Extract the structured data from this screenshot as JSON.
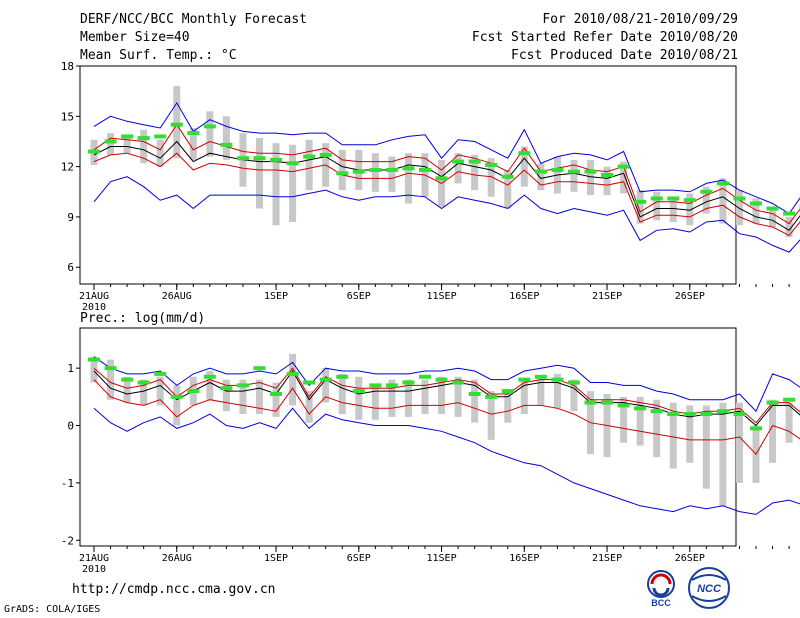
{
  "header": {
    "title": "DERF/NCC/BCC Monthly Forecast",
    "member_size": "Member Size=40",
    "variable_top": "Mean Surf. Temp.: °C",
    "period": "For 2010/08/21-2010/09/29",
    "fcst_started": "Fcst Started Refer Date 2010/08/20",
    "fcst_produced": "Fcst Produced Date 2010/08/21"
  },
  "footer": {
    "url": "http://cmdp.ncc.cma.gov.cn",
    "credit": "GrADS: COLA/IGES",
    "logo_left_text": "BCC",
    "logo_right_text": "NCC"
  },
  "colors": {
    "mean": "#000000",
    "spread": "#d00000",
    "extreme": "#0000dd",
    "box": "#c8c8c8",
    "climatology": "#33dd33"
  },
  "chart_data": [
    {
      "type": "line",
      "title": "Mean Surf. Temp.: °C",
      "x_tick_labels": [
        "21AUG",
        "26AUG",
        "1SEP",
        "6SEP",
        "11SEP",
        "16SEP",
        "21SEP",
        "26SEP"
      ],
      "x_tick_days": [
        0,
        5,
        11,
        16,
        21,
        26,
        31,
        36
      ],
      "x_year_label": "2010",
      "ylim": [
        5,
        18
      ],
      "y_ticks": [
        6,
        9,
        12,
        15,
        18
      ],
      "series": [
        {
          "name": "ensemble mean",
          "color": "#000000",
          "values": [
            12.7,
            13.2,
            13.2,
            13.0,
            12.5,
            13.5,
            12.3,
            12.8,
            12.6,
            12.4,
            12.3,
            12.3,
            12.2,
            12.4,
            12.6,
            12.0,
            11.8,
            11.8,
            11.8,
            12.1,
            12.0,
            11.4,
            12.2,
            12.0,
            11.8,
            11.3,
            12.5,
            11.3,
            11.5,
            11.6,
            11.4,
            11.3,
            11.6,
            9.0,
            9.5,
            9.5,
            9.4,
            9.9,
            10.2,
            9.5,
            9.0,
            8.8,
            8.2,
            9.5,
            8.9,
            8.6
          ]
        },
        {
          "name": "spread upper",
          "color": "#d00000",
          "values": [
            13.0,
            13.7,
            13.6,
            13.5,
            13.0,
            14.5,
            13.0,
            13.5,
            13.2,
            12.9,
            12.8,
            12.8,
            12.7,
            12.9,
            13.1,
            12.4,
            12.3,
            12.3,
            12.3,
            12.6,
            12.5,
            11.8,
            12.7,
            12.5,
            12.2,
            11.7,
            13.1,
            11.7,
            11.9,
            12.1,
            11.8,
            11.7,
            12.0,
            9.3,
            9.9,
            9.9,
            9.8,
            10.3,
            10.7,
            10.0,
            9.4,
            9.2,
            8.6,
            9.9,
            9.3,
            9.0
          ]
        },
        {
          "name": "spread lower",
          "color": "#d00000",
          "values": [
            12.3,
            12.7,
            12.8,
            12.5,
            12.0,
            12.8,
            11.8,
            12.2,
            12.1,
            11.9,
            11.8,
            11.8,
            11.7,
            11.9,
            12.1,
            11.5,
            11.3,
            11.3,
            11.3,
            11.6,
            11.5,
            11.0,
            11.7,
            11.5,
            11.4,
            10.9,
            11.8,
            10.9,
            11.1,
            11.1,
            11.0,
            10.9,
            11.1,
            8.7,
            9.1,
            9.1,
            9.0,
            9.5,
            9.7,
            9.0,
            8.6,
            8.4,
            7.9,
            9.1,
            8.5,
            8.2
          ]
        },
        {
          "name": "max",
          "color": "#0000dd",
          "values": [
            14.4,
            15.0,
            14.7,
            14.5,
            14.3,
            15.8,
            14.1,
            14.8,
            14.4,
            14.1,
            14.0,
            14.0,
            13.9,
            14.0,
            14.0,
            13.3,
            13.3,
            13.3,
            13.6,
            13.8,
            13.9,
            12.5,
            13.6,
            13.5,
            13.0,
            12.5,
            14.2,
            12.2,
            12.6,
            12.8,
            12.7,
            12.4,
            12.9,
            10.5,
            10.6,
            10.6,
            10.5,
            11.0,
            11.2,
            10.6,
            10.2,
            9.8,
            9.2,
            10.6,
            10.2,
            10.0
          ]
        },
        {
          "name": "min",
          "color": "#0000dd",
          "values": [
            9.9,
            11.1,
            11.4,
            10.8,
            10.0,
            10.3,
            9.5,
            10.3,
            10.3,
            10.3,
            10.3,
            10.2,
            10.2,
            10.4,
            10.6,
            10.2,
            10.0,
            10.2,
            10.2,
            10.3,
            10.2,
            9.5,
            10.2,
            10.0,
            9.8,
            9.5,
            10.3,
            9.5,
            9.2,
            9.5,
            9.3,
            9.1,
            9.4,
            7.6,
            8.2,
            8.3,
            8.1,
            8.7,
            8.8,
            8.0,
            7.8,
            7.3,
            6.9,
            8.0,
            7.8,
            7.4
          ]
        }
      ],
      "boxes": [
        [
          12.1,
          13.6
        ],
        [
          12.7,
          14.0
        ],
        [
          12.8,
          13.8
        ],
        [
          12.2,
          14.2
        ],
        [
          12.0,
          13.6
        ],
        [
          12.5,
          16.8
        ],
        [
          12.4,
          14.3
        ],
        [
          12.6,
          15.3
        ],
        [
          12.4,
          15.0
        ],
        [
          10.8,
          14.0
        ],
        [
          9.5,
          13.7
        ],
        [
          8.5,
          13.4
        ],
        [
          8.7,
          13.3
        ],
        [
          10.6,
          13.6
        ],
        [
          10.8,
          13.4
        ],
        [
          10.6,
          13.0
        ],
        [
          10.6,
          13.0
        ],
        [
          10.5,
          12.8
        ],
        [
          10.5,
          12.6
        ],
        [
          9.8,
          12.8
        ],
        [
          10.2,
          12.8
        ],
        [
          9.6,
          12.4
        ],
        [
          11.0,
          12.8
        ],
        [
          10.6,
          12.7
        ],
        [
          10.2,
          12.5
        ],
        [
          9.5,
          11.8
        ],
        [
          10.8,
          13.2
        ],
        [
          10.6,
          12.2
        ],
        [
          10.4,
          12.6
        ],
        [
          10.5,
          12.4
        ],
        [
          10.3,
          12.4
        ],
        [
          10.3,
          12.0
        ],
        [
          10.4,
          12.3
        ],
        [
          8.6,
          10.6
        ],
        [
          8.8,
          10.5
        ],
        [
          8.7,
          10.2
        ],
        [
          8.5,
          10.4
        ],
        [
          9.2,
          10.8
        ],
        [
          8.6,
          11.3
        ],
        [
          8.5,
          10.6
        ],
        [
          8.6,
          10.1
        ],
        [
          8.4,
          9.6
        ],
        [
          7.8,
          9.0
        ],
        [
          8.3,
          10.2
        ],
        [
          8.0,
          10.1
        ],
        [
          7.6,
          9.7
        ]
      ],
      "climatology": [
        12.9,
        13.5,
        13.8,
        13.7,
        13.8,
        14.5,
        14.0,
        14.4,
        13.3,
        12.5,
        12.5,
        12.4,
        12.2,
        12.6,
        12.7,
        11.6,
        11.7,
        11.8,
        11.8,
        11.9,
        11.8,
        11.3,
        12.3,
        12.3,
        12.1,
        11.4,
        12.8,
        11.7,
        11.8,
        11.7,
        11.7,
        11.5,
        12.0,
        9.9,
        10.1,
        10.1,
        10.0,
        10.5,
        11.0,
        10.1,
        9.8,
        9.5,
        9.2,
        9.6,
        9.3,
        9.2
      ]
    },
    {
      "type": "line",
      "title": "Prec.: log(mm/d)",
      "x_tick_labels": [
        "21AUG",
        "26AUG",
        "1SEP",
        "6SEP",
        "11SEP",
        "16SEP",
        "21SEP",
        "26SEP"
      ],
      "x_tick_days": [
        0,
        5,
        11,
        16,
        21,
        26,
        31,
        36
      ],
      "x_year_label": "2010",
      "ylim": [
        -2.1,
        1.7
      ],
      "y_ticks": [
        -2,
        -1,
        0,
        1
      ],
      "series": [
        {
          "name": "ensemble mean",
          "color": "#000000",
          "values": [
            0.95,
            0.65,
            0.55,
            0.6,
            0.7,
            0.45,
            0.6,
            0.75,
            0.6,
            0.6,
            0.65,
            0.55,
            0.95,
            0.45,
            0.8,
            0.65,
            0.55,
            0.6,
            0.6,
            0.6,
            0.65,
            0.7,
            0.75,
            0.7,
            0.5,
            0.5,
            0.7,
            0.75,
            0.75,
            0.65,
            0.4,
            0.4,
            0.4,
            0.35,
            0.3,
            0.2,
            0.15,
            0.2,
            0.2,
            0.25,
            0.0,
            0.35,
            0.35,
            0.1,
            0.2,
            0.25
          ]
        },
        {
          "name": "spread upper",
          "color": "#d00000",
          "values": [
            1.0,
            0.75,
            0.65,
            0.7,
            0.8,
            0.5,
            0.7,
            0.8,
            0.7,
            0.7,
            0.75,
            0.65,
            1.0,
            0.5,
            0.85,
            0.7,
            0.65,
            0.65,
            0.65,
            0.7,
            0.7,
            0.75,
            0.8,
            0.75,
            0.55,
            0.55,
            0.75,
            0.8,
            0.8,
            0.7,
            0.45,
            0.45,
            0.45,
            0.4,
            0.35,
            0.25,
            0.2,
            0.25,
            0.25,
            0.3,
            0.05,
            0.4,
            0.4,
            0.15,
            0.25,
            0.3
          ]
        },
        {
          "name": "spread lower",
          "color": "#d00000",
          "values": [
            0.8,
            0.5,
            0.4,
            0.35,
            0.45,
            0.15,
            0.35,
            0.45,
            0.4,
            0.35,
            0.3,
            0.25,
            0.65,
            0.2,
            0.5,
            0.4,
            0.35,
            0.3,
            0.3,
            0.35,
            0.35,
            0.35,
            0.4,
            0.3,
            0.2,
            0.25,
            0.35,
            0.35,
            0.3,
            0.2,
            0.05,
            0.0,
            -0.05,
            -0.1,
            -0.15,
            -0.2,
            -0.25,
            -0.25,
            -0.25,
            -0.2,
            -0.5,
            0.0,
            -0.1,
            -0.3,
            -0.2,
            -0.25
          ]
        },
        {
          "name": "max",
          "color": "#0000dd",
          "values": [
            1.2,
            1.0,
            0.9,
            0.9,
            0.95,
            0.7,
            0.9,
            1.0,
            0.9,
            0.9,
            0.95,
            0.9,
            1.1,
            0.7,
            1.0,
            0.95,
            0.95,
            0.9,
            0.9,
            0.9,
            0.95,
            0.95,
            1.0,
            0.95,
            0.8,
            0.8,
            0.95,
            1.0,
            1.05,
            1.0,
            0.75,
            0.75,
            0.7,
            0.7,
            0.6,
            0.55,
            0.45,
            0.45,
            0.45,
            0.55,
            0.25,
            0.9,
            0.8,
            0.6,
            0.65,
            0.75
          ]
        },
        {
          "name": "min",
          "color": "#0000dd",
          "values": [
            0.3,
            0.05,
            -0.1,
            0.05,
            0.15,
            -0.05,
            0.05,
            0.2,
            0.0,
            -0.05,
            0.05,
            -0.05,
            0.3,
            -0.05,
            0.2,
            0.1,
            0.05,
            0.0,
            0.0,
            0.0,
            -0.05,
            -0.1,
            -0.2,
            -0.3,
            -0.45,
            -0.55,
            -0.65,
            -0.7,
            -0.85,
            -1.0,
            -1.1,
            -1.2,
            -1.3,
            -1.4,
            -1.45,
            -1.5,
            -1.4,
            -1.45,
            -1.4,
            -1.5,
            -1.55,
            -1.35,
            -1.3,
            -1.4,
            -1.35,
            -1.2
          ]
        }
      ],
      "boxes": [
        [
          0.75,
          1.2
        ],
        [
          0.45,
          1.15
        ],
        [
          0.4,
          0.85
        ],
        [
          0.35,
          0.8
        ],
        [
          0.35,
          0.85
        ],
        [
          0.0,
          0.7
        ],
        [
          0.35,
          0.85
        ],
        [
          0.45,
          0.95
        ],
        [
          0.25,
          0.8
        ],
        [
          0.2,
          0.8
        ],
        [
          0.2,
          0.8
        ],
        [
          0.15,
          0.75
        ],
        [
          0.35,
          1.25
        ],
        [
          0.05,
          0.6
        ],
        [
          0.4,
          1.0
        ],
        [
          0.2,
          0.9
        ],
        [
          0.1,
          0.85
        ],
        [
          0.1,
          0.7
        ],
        [
          0.15,
          0.8
        ],
        [
          0.15,
          0.8
        ],
        [
          0.2,
          0.8
        ],
        [
          0.2,
          0.85
        ],
        [
          0.15,
          0.85
        ],
        [
          0.05,
          0.8
        ],
        [
          -0.25,
          0.6
        ],
        [
          0.05,
          0.6
        ],
        [
          0.2,
          0.8
        ],
        [
          0.35,
          0.85
        ],
        [
          0.3,
          0.9
        ],
        [
          0.25,
          0.8
        ],
        [
          -0.5,
          0.6
        ],
        [
          -0.55,
          0.55
        ],
        [
          -0.3,
          0.5
        ],
        [
          -0.35,
          0.5
        ],
        [
          -0.55,
          0.45
        ],
        [
          -0.75,
          0.4
        ],
        [
          -0.65,
          0.35
        ],
        [
          -1.1,
          0.35
        ],
        [
          -1.4,
          0.4
        ],
        [
          -1.0,
          0.4
        ],
        [
          -1.0,
          0.0
        ],
        [
          -0.65,
          0.45
        ],
        [
          -0.3,
          0.4
        ],
        [
          -0.8,
          0.4
        ],
        [
          -0.75,
          0.25
        ],
        [
          -0.8,
          0.25
        ]
      ],
      "climatology": [
        1.15,
        1.0,
        0.8,
        0.75,
        0.9,
        0.5,
        0.6,
        0.85,
        0.65,
        0.7,
        1.0,
        0.55,
        0.9,
        0.75,
        0.8,
        0.85,
        0.6,
        0.7,
        0.7,
        0.75,
        0.85,
        0.8,
        0.75,
        0.55,
        0.5,
        0.6,
        0.8,
        0.85,
        0.8,
        0.75,
        0.4,
        0.4,
        0.35,
        0.3,
        0.25,
        0.2,
        0.2,
        0.2,
        0.25,
        0.2,
        -0.05,
        0.4,
        0.45,
        0.25,
        0.15,
        0.15
      ]
    }
  ]
}
